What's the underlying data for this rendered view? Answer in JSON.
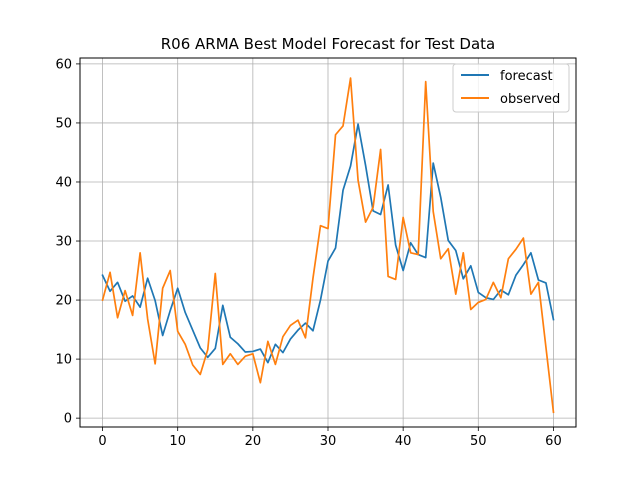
{
  "chart_data": {
    "type": "line",
    "title": "R06 ARMA Best Model Forecast for Test Data",
    "xlabel": "",
    "ylabel": "",
    "xlim": [
      -3,
      63
    ],
    "ylim": [
      -1.5,
      61
    ],
    "xticks": [
      0,
      10,
      20,
      30,
      40,
      50,
      60
    ],
    "yticks": [
      0,
      10,
      20,
      30,
      40,
      50,
      60
    ],
    "grid": true,
    "legend_position": "top-right",
    "x": [
      0,
      1,
      2,
      3,
      4,
      5,
      6,
      7,
      8,
      9,
      10,
      11,
      12,
      13,
      14,
      15,
      16,
      17,
      18,
      19,
      20,
      21,
      22,
      23,
      24,
      25,
      26,
      27,
      28,
      29,
      30,
      31,
      32,
      33,
      34,
      35,
      36,
      37,
      38,
      39,
      40,
      41,
      42,
      43,
      44,
      45,
      46,
      47,
      48,
      49,
      50,
      51,
      52,
      53,
      54,
      55,
      56,
      57,
      58,
      59,
      60
    ],
    "series": [
      {
        "name": "forecast",
        "color": "#1f77b4",
        "values": [
          24.2,
          21.5,
          23.0,
          19.8,
          20.7,
          18.8,
          23.7,
          19.9,
          14.0,
          18.2,
          22.0,
          17.9,
          14.9,
          11.9,
          10.3,
          11.8,
          19.1,
          13.7,
          12.6,
          11.2,
          11.3,
          11.7,
          9.4,
          12.5,
          11.1,
          13.4,
          14.9,
          16.1,
          14.8,
          20.0,
          26.6,
          28.8,
          38.6,
          42.7,
          49.8,
          42.8,
          35.1,
          34.5,
          39.5,
          29.3,
          25.0,
          29.7,
          27.7,
          27.2,
          43.2,
          37.4,
          30.1,
          28.4,
          23.6,
          25.8,
          21.3,
          20.4,
          20.1,
          21.7,
          20.9,
          24.2,
          26.0,
          28.0,
          23.4,
          22.9,
          16.7
        ]
      },
      {
        "name": "observed",
        "color": "#ff7f0e",
        "values": [
          20.0,
          24.7,
          17.0,
          21.6,
          17.4,
          28.0,
          16.8,
          9.2,
          22.0,
          25.0,
          14.7,
          12.5,
          9.0,
          7.4,
          11.6,
          24.5,
          9.1,
          10.9,
          9.1,
          10.5,
          10.9,
          6.0,
          13.0,
          9.1,
          13.8,
          15.7,
          16.6,
          13.6,
          23.7,
          32.6,
          32.1,
          48.0,
          49.5,
          57.6,
          40.3,
          33.2,
          35.7,
          45.5,
          24.0,
          23.5,
          34.0,
          28.0,
          27.7,
          57.0,
          35.0,
          27.0,
          28.7,
          21.0,
          28.0,
          18.4,
          19.6,
          20.1,
          23.0,
          20.4,
          27.0,
          28.6,
          30.5,
          21.0,
          23.0,
          12.0,
          1.0
        ]
      }
    ]
  }
}
